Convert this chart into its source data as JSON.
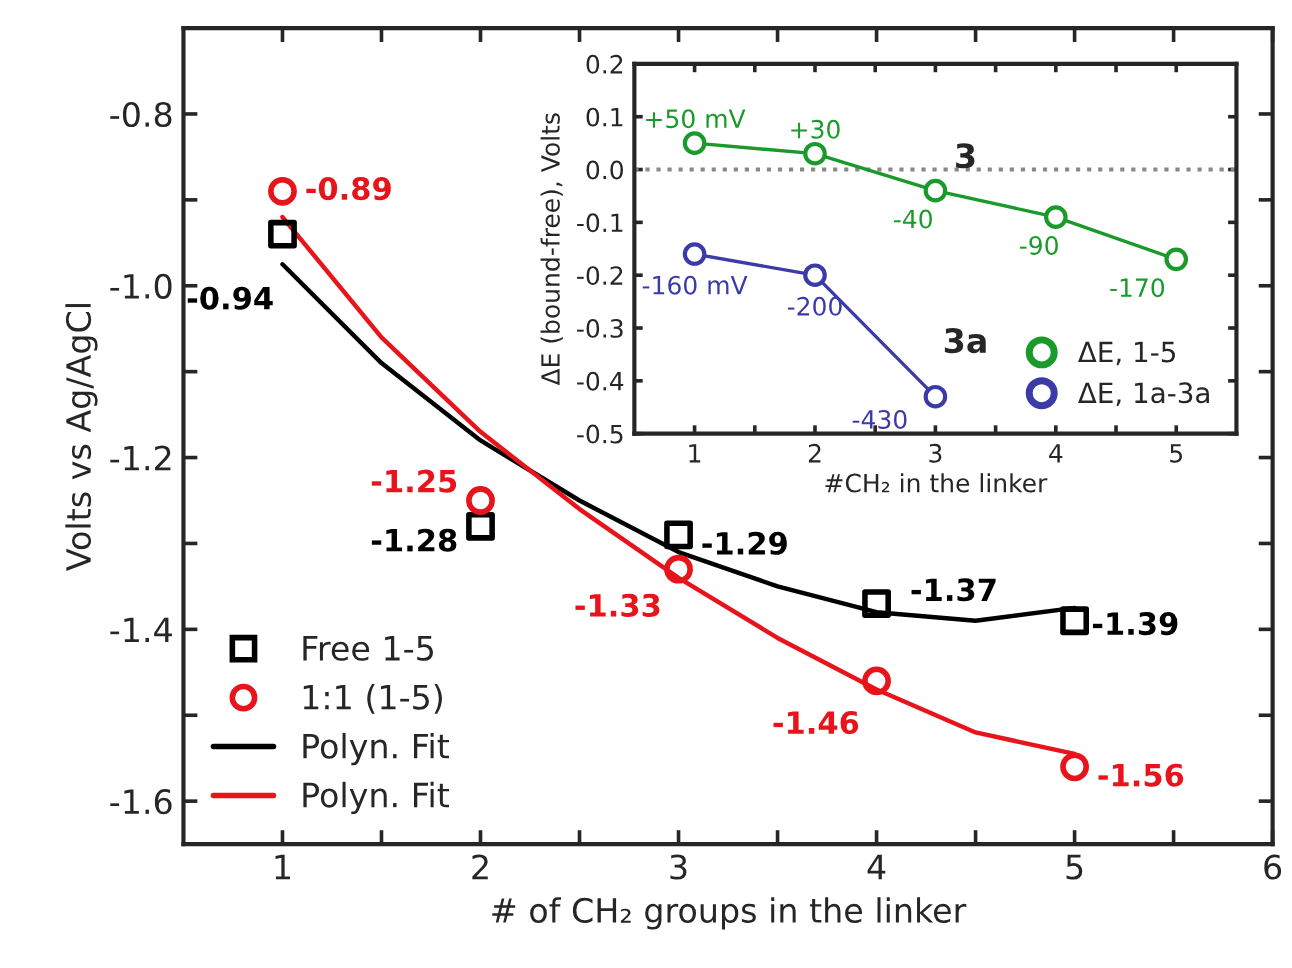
{
  "chart_data": [
    {
      "type": "scatter",
      "xlabel": "# of CH₂ groups in the linker",
      "ylabel": "Volts vs Ag/AgCl",
      "x": [
        1,
        2,
        3,
        4,
        5
      ],
      "series": [
        {
          "name": "Free 1-5",
          "marker": "square",
          "color": "#000000",
          "values": [
            -0.94,
            -1.28,
            -1.29,
            -1.37,
            -1.39
          ],
          "value_labels": [
            "-0.94",
            "-1.28",
            "-1.29",
            "-1.37",
            "-1.39"
          ]
        },
        {
          "name": "1:1 (1-5)",
          "marker": "circle",
          "color": "#e8141b",
          "values": [
            -0.89,
            -1.25,
            -1.33,
            -1.46,
            -1.56
          ],
          "value_labels": [
            "-0.89",
            "-1.25",
            "-1.33",
            "-1.46",
            "-1.56"
          ]
        },
        {
          "name": "Polyn. Fit",
          "type": "line",
          "color": "#000000",
          "x": [
            1,
            1.5,
            2,
            2.5,
            3,
            3.5,
            4,
            4.5,
            5
          ],
          "values": [
            -0.975,
            -1.09,
            -1.18,
            -1.25,
            -1.31,
            -1.35,
            -1.38,
            -1.39,
            -1.375
          ]
        },
        {
          "name": "Polyn. Fit",
          "type": "line",
          "color": "#e8141b",
          "x": [
            1,
            1.5,
            2,
            2.5,
            3,
            3.5,
            4,
            4.5,
            5
          ],
          "values": [
            -0.92,
            -1.06,
            -1.17,
            -1.26,
            -1.34,
            -1.41,
            -1.47,
            -1.52,
            -1.545
          ]
        }
      ],
      "xlim": [
        0.5,
        6
      ],
      "ylim": [
        -1.65,
        -0.7
      ],
      "xticks": [
        1,
        {
          "value": 1.5,
          "label": null
        },
        2,
        {
          "value": 2.5,
          "label": null
        },
        3,
        {
          "value": 3.5,
          "label": null
        },
        4,
        {
          "value": 4.5,
          "label": null
        },
        5,
        {
          "value": 5.5,
          "label": null
        },
        6
      ],
      "yticks": [
        {
          "value": -1.6,
          "label": "-1.6"
        },
        {
          "value": -1.5,
          "label": null
        },
        {
          "value": -1.4,
          "label": "-1.4"
        },
        {
          "value": -1.3,
          "label": null
        },
        {
          "value": -1.2,
          "label": "-1.2"
        },
        {
          "value": -1.1,
          "label": null
        },
        {
          "value": -1.0,
          "label": "-1.0"
        },
        {
          "value": -0.9,
          "label": null
        },
        {
          "value": -0.8,
          "label": "-0.8"
        }
      ],
      "legend": "bottom left",
      "grid": false
    },
    {
      "type": "line",
      "xlabel": "#CH₂ in the linker",
      "ylabel": "ΔE (bound-free), Volts",
      "x": [
        1,
        2,
        3,
        4,
        5
      ],
      "series": [
        {
          "name": "ΔE, 1-5",
          "marker": "circle",
          "color": "#1a9a2a",
          "values": [
            0.05,
            0.03,
            -0.04,
            -0.09,
            -0.17
          ]
        },
        {
          "name": "ΔE, 1a-3a",
          "marker": "circle",
          "color": "#3a3aa8",
          "x": [
            1,
            2,
            3
          ],
          "values": [
            -0.16,
            -0.2,
            -0.43
          ]
        }
      ],
      "annotations": [
        "3",
        "3a",
        {
          "text": "+50 mV",
          "x": 1,
          "y": 0.05
        },
        {
          "text": "+30",
          "x": 2,
          "y": 0.03
        },
        {
          "text": "-40",
          "x": 3,
          "y": -0.04
        },
        {
          "text": "-90",
          "x": 4,
          "y": -0.09
        },
        {
          "text": "-170",
          "x": 5,
          "y": -0.17
        },
        {
          "text": "-160 mV",
          "x": 1,
          "y": -0.16
        },
        {
          "text": "-200",
          "x": 2,
          "y": -0.2
        },
        {
          "text": "-430",
          "x": 3,
          "y": -0.43
        }
      ],
      "ref_lines": [
        {
          "axis": "y",
          "value": 0,
          "color": "#888888",
          "line_style": "dotted"
        }
      ],
      "xlim": [
        0.5,
        5.5
      ],
      "ylim": [
        -0.5,
        0.2
      ],
      "xticks": [
        1,
        {
          "value": 1.5,
          "label": null
        },
        2,
        {
          "value": 2.5,
          "label": null
        },
        3,
        {
          "value": 3.5,
          "label": null
        },
        4,
        {
          "value": 4.5,
          "label": null
        },
        5
      ],
      "yticks": [
        {
          "value": -0.5,
          "label": "-0.5"
        },
        {
          "value": -0.4,
          "label": "-0.4"
        },
        {
          "value": -0.3,
          "label": "-0.3"
        },
        {
          "value": -0.2,
          "label": "-0.2"
        },
        {
          "value": -0.1,
          "label": "-0.1"
        },
        {
          "value": 0,
          "label": "0.0"
        },
        {
          "value": 0.1,
          "label": "0.1"
        },
        {
          "value": 0.2,
          "label": "0.2"
        }
      ],
      "legend": "bottom right",
      "grid": false
    }
  ]
}
